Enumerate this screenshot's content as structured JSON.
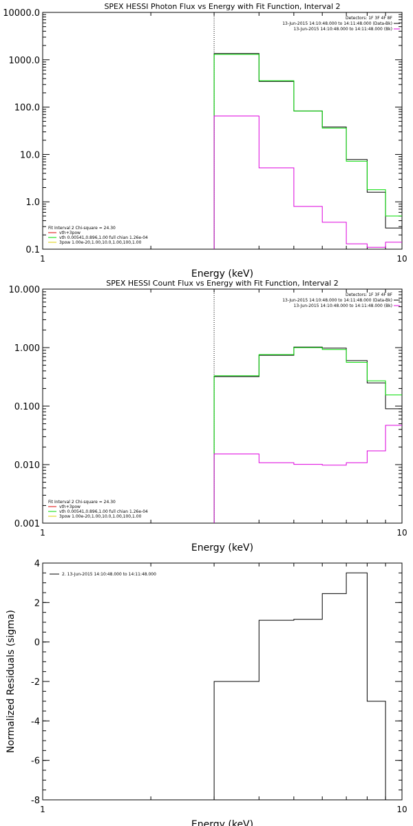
{
  "chart_data": [
    {
      "type": "line",
      "title": "SPEX HESSI Photon Flux vs Energy with Fit Function, Interval 2",
      "xlabel": "Energy (keV)",
      "ylabel": "",
      "xscale": "log",
      "yscale": "log",
      "xlim": [
        1,
        10
      ],
      "ylim": [
        0.1,
        10000
      ],
      "x_ticks": [
        {
          "v": 1,
          "label": "1"
        },
        {
          "v": 10,
          "label": "10"
        }
      ],
      "y_ticks": [
        {
          "v": 0.1,
          "label": "0.1"
        },
        {
          "v": 1,
          "label": "1.0"
        },
        {
          "v": 10,
          "label": "10.0"
        },
        {
          "v": 100,
          "label": "100.0"
        },
        {
          "v": 1000,
          "label": "1000.0"
        },
        {
          "v": 10000,
          "label": "10000.0"
        }
      ],
      "vline_x": 3.0,
      "bin_edges": [
        3.0,
        4.0,
        5.0,
        6.0,
        7.0,
        8.0,
        9.0,
        10.0
      ],
      "series": [
        {
          "color": "#000000",
          "values": [
            1350,
            350,
            83,
            38,
            7.8,
            1.6,
            0.28
          ]
        },
        {
          "color": "#00dd00",
          "values": [
            1300,
            360,
            83,
            36,
            7.2,
            1.8,
            0.5
          ]
        },
        {
          "color": "#dd00dd",
          "values": [
            65,
            5.2,
            0.8,
            0.37,
            0.13,
            0.11,
            0.14
          ]
        }
      ],
      "legend_top": {
        "lines": [
          {
            "text": "Detectors: 1F 3F 4F 8F",
            "color": ""
          },
          {
            "text": "13-Jun-2015 14:10:48.000 to 14:11:48.000 (Data-Bk)",
            "color": "#000000"
          },
          {
            "text": "13-Jun-2015 14:10:48.000 to 14:11:48.000 (Bk)",
            "color": "#dd00dd"
          }
        ]
      },
      "legend_fit": {
        "header": "Fit Interval  2   Chi-square = 24.30",
        "lines": [
          {
            "text": "vth+3pow",
            "color": "#dd0000"
          },
          {
            "text": "vth 0.00541,0.896,1.00  full chian 1.26e-04",
            "color": "#00dd00"
          },
          {
            "text": "3pow 1.00e-20,1.00,10.0,1.00,100,1.00",
            "color": "#ddcc00"
          }
        ]
      }
    },
    {
      "type": "line",
      "title": "SPEX HESSI Count Flux vs Energy with Fit Function, Interval 2",
      "xlabel": "Energy (keV)",
      "ylabel": "",
      "xscale": "log",
      "yscale": "log",
      "xlim": [
        1,
        10
      ],
      "ylim": [
        0.001,
        10
      ],
      "x_ticks": [
        {
          "v": 1,
          "label": "1"
        },
        {
          "v": 10,
          "label": "10"
        }
      ],
      "y_ticks": [
        {
          "v": 0.001,
          "label": "0.001"
        },
        {
          "v": 0.01,
          "label": "0.010"
        },
        {
          "v": 0.1,
          "label": "0.100"
        },
        {
          "v": 1,
          "label": "1.000"
        },
        {
          "v": 10,
          "label": "10.000"
        }
      ],
      "vline_x": 3.0,
      "bin_edges": [
        3.0,
        4.0,
        5.0,
        6.0,
        7.0,
        8.0,
        9.0,
        10.0
      ],
      "series": [
        {
          "color": "#000000",
          "values": [
            0.32,
            0.74,
            1.02,
            0.98,
            0.6,
            0.25,
            0.09
          ]
        },
        {
          "color": "#00dd00",
          "values": [
            0.33,
            0.76,
            1.0,
            0.93,
            0.56,
            0.27,
            0.155
          ]
        },
        {
          "color": "#dd00dd",
          "values": [
            0.0152,
            0.0108,
            0.0101,
            0.0098,
            0.0108,
            0.0172,
            0.047
          ]
        }
      ],
      "legend_top": {
        "lines": [
          {
            "text": "Detectors: 1F 3F 4F 8F",
            "color": ""
          },
          {
            "text": "13-Jun-2015 14:10:48.000 to 14:11:48.000 (Data-Bk)",
            "color": "#000000"
          },
          {
            "text": "13-Jun-2015 14:10:48.000 to 14:11:48.000 (Bk)",
            "color": "#dd00dd"
          }
        ]
      },
      "legend_fit": {
        "header": "Fit Interval  2   Chi-square = 24.30",
        "lines": [
          {
            "text": "vth+3pow",
            "color": "#dd0000"
          },
          {
            "text": "vth 0.00541,0.896,1.00  full chian 1.26e-04",
            "color": "#00dd00"
          },
          {
            "text": "3pow 1.00e-20,1.00,10.0,1.00,100,1.00",
            "color": "#ddcc00"
          }
        ]
      }
    },
    {
      "type": "line",
      "title": "",
      "xlabel": "Energy (keV)",
      "ylabel": "Normalized Residuals (sigma)",
      "xscale": "log",
      "yscale": "linear",
      "xlim": [
        1,
        10
      ],
      "ylim": [
        -8,
        4
      ],
      "x_ticks": [
        {
          "v": 1,
          "label": "1"
        },
        {
          "v": 10,
          "label": "10"
        }
      ],
      "y_ticks": [
        {
          "v": -8,
          "label": "-8"
        },
        {
          "v": -6,
          "label": "-6"
        },
        {
          "v": -4,
          "label": "-4"
        },
        {
          "v": -2,
          "label": "-2"
        },
        {
          "v": 0,
          "label": "0"
        },
        {
          "v": 2,
          "label": "2"
        },
        {
          "v": 4,
          "label": "4"
        }
      ],
      "bin_edges": [
        3.0,
        4.0,
        5.0,
        6.0,
        7.0,
        8.0,
        9.0,
        10.0
      ],
      "series": [
        {
          "color": "#000000",
          "name": "2. 13-Jun-2015 14:10:48.000 to 14:11:48.000",
          "values": [
            -2.0,
            1.1,
            1.15,
            2.45,
            3.5,
            -3.0,
            -8.1
          ]
        }
      ],
      "legend_top": {
        "lines": [
          {
            "text": "2. 13-Jun-2015 14:10:48.000 to 14:11:48.000",
            "color": "#000000"
          }
        ]
      }
    }
  ]
}
